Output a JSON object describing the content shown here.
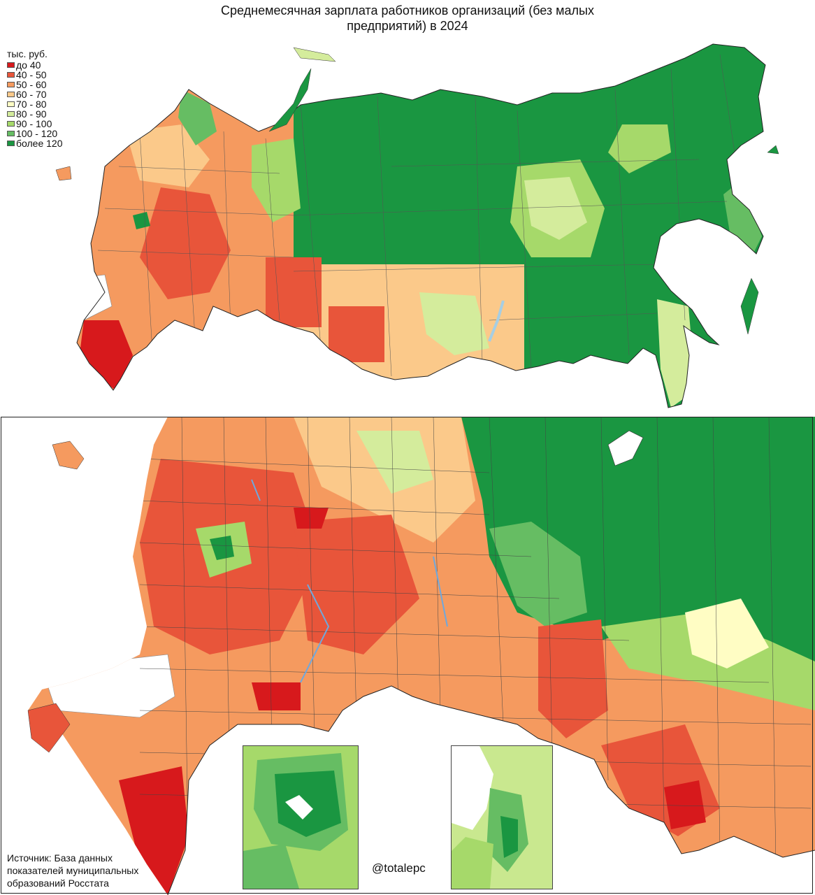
{
  "title_line1": "Среднемесячная зарплата работников организаций (без малых",
  "title_line2": "предприятий) в 2024",
  "legend": {
    "unit": "тыс. руб.",
    "items": [
      {
        "label": "до 40",
        "color": "#d7191c"
      },
      {
        "label": "40 - 50",
        "color": "#e8553a"
      },
      {
        "label": "50 - 60",
        "color": "#f59a5f"
      },
      {
        "label": "60 - 70",
        "color": "#fbc98a"
      },
      {
        "label": "70 - 80",
        "color": "#fffdc4"
      },
      {
        "label": "80 - 90",
        "color": "#d4ec9c"
      },
      {
        "label": "90 - 100",
        "color": "#a6d96a"
      },
      {
        "label": "100 - 120",
        "color": "#66bd63"
      },
      {
        "label": "более 120",
        "color": "#1a9641"
      }
    ]
  },
  "source_text": "Источник: База данных показателей муниципальных образований Росстата",
  "handle": "@totalepc",
  "colors": {
    "water": "#a6cee3",
    "no_data": "#ffffff",
    "border": "#333333"
  }
}
